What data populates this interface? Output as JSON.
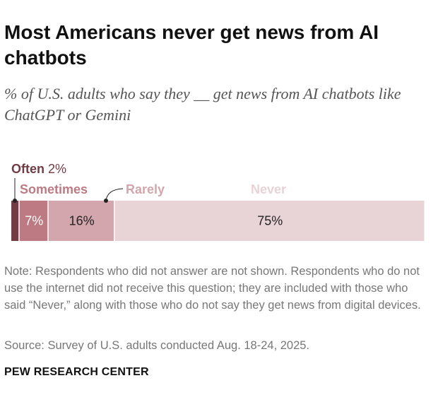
{
  "title": "Most Americans never get news from AI chatbots",
  "subtitle": "% of U.S. adults who say they __ get news from AI chatbots like ChatGPT or Gemini",
  "note": "Note: Respondents who did not answer are not shown. Respondents who do not use the internet did not receive this question; they are included with those who said “Never,” along with those who do not say they get news from digital devices.",
  "source": "Source: Survey of U.S. adults conducted Aug. 18-24, 2025.",
  "brand": "PEW RESEARCH CENTER",
  "chart_data": {
    "type": "bar",
    "orientation": "horizontal-stacked",
    "categories": [
      "Often",
      "Sometimes",
      "Rarely",
      "Never"
    ],
    "values": [
      2,
      7,
      16,
      75
    ],
    "labels": [
      "2%",
      "7%",
      "16%",
      "75%"
    ],
    "colors": [
      "#733c45",
      "#bd7a82",
      "#d3a6ad",
      "#e8d3d7"
    ],
    "xlim": [
      0,
      100
    ]
  }
}
